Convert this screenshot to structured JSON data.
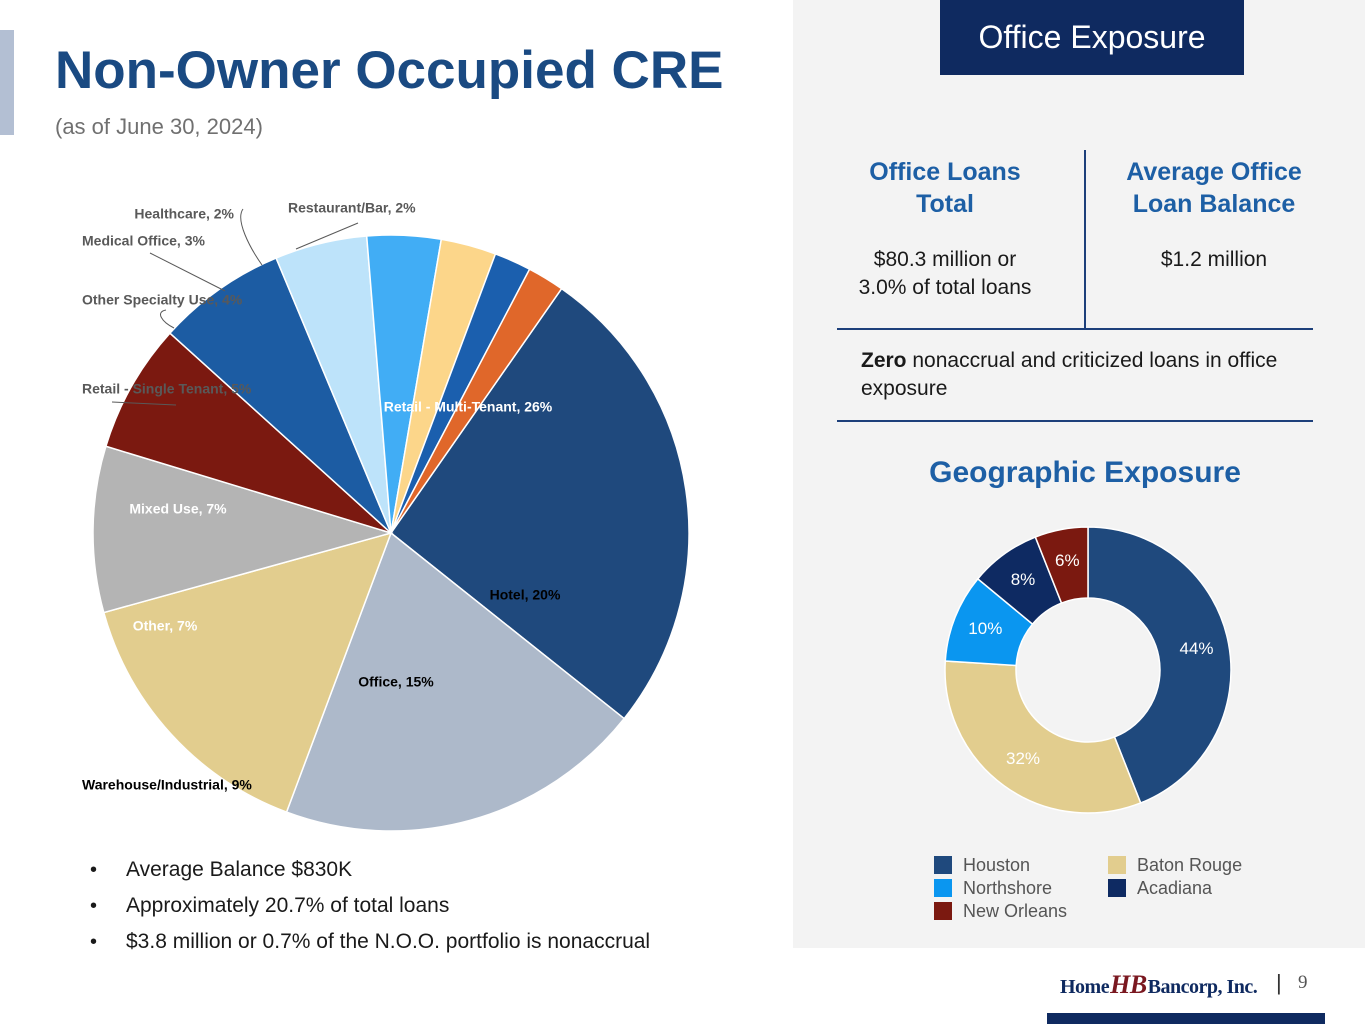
{
  "header": {
    "title": "Non-Owner Occupied CRE",
    "subtitle": "(as of June 30, 2024)"
  },
  "bullets": [
    "Average Balance $830K",
    "Approximately 20.7% of total loans",
    "$3.8 million or 0.7% of the N.O.O. portfolio is nonaccrual"
  ],
  "office_exposure": {
    "header": "Office Exposure",
    "loans_total_heading_line1": "Office Loans",
    "loans_total_heading_line2": "Total",
    "loans_total_value_line1": "$80.3 million or",
    "loans_total_value_line2": "3.0% of total loans",
    "avg_balance_heading_line1": "Average Office",
    "avg_balance_heading_line2": "Loan Balance",
    "avg_balance_value": "$1.2 million",
    "zero_bold": "Zero",
    "zero_text": " nonaccrual and criticized loans in office exposure"
  },
  "geo": {
    "title": "Geographic Exposure"
  },
  "footer": {
    "logo_left": "Home",
    "logo_mark": "HB",
    "logo_right": "Bancorp, Inc.",
    "separator": "|",
    "page_number": "9"
  },
  "chart_data": [
    {
      "type": "pie",
      "title": "",
      "slices": [
        {
          "label": "Retail - Multi-Tenant, 26%",
          "category": "Retail - Multi-Tenant",
          "value": 26,
          "color": "#1f497d",
          "label_color": "#ffffff"
        },
        {
          "label": "Hotel, 20%",
          "category": "Hotel",
          "value": 20,
          "color": "#adb9ca",
          "label_color": "#000000"
        },
        {
          "label": "Office, 15%",
          "category": "Office",
          "value": 15,
          "color": "#e2cd8e",
          "label_color": "#000000"
        },
        {
          "label": "Warehouse/Industrial, 9%",
          "category": "Warehouse/Industrial",
          "value": 9,
          "color": "#b4b4b4",
          "label_color": "#000000"
        },
        {
          "label": "Other, 7%",
          "category": "Other",
          "value": 7,
          "color": "#7b1910",
          "label_color": "#ffffff"
        },
        {
          "label": "Mixed Use, 7%",
          "category": "Mixed Use",
          "value": 7,
          "color": "#1c5ca3",
          "label_color": "#ffffff"
        },
        {
          "label": "Retail - Single Tenant, 5%",
          "category": "Retail - Single Tenant",
          "value": 5,
          "color": "#bde3fa",
          "label_color": "#595959"
        },
        {
          "label": "Other Specialty Use, 4%",
          "category": "Other Specialty Use",
          "value": 4,
          "color": "#41adf5",
          "label_color": "#595959"
        },
        {
          "label": "Medical Office, 3%",
          "category": "Medical Office",
          "value": 3,
          "color": "#fcd68a",
          "label_color": "#595959"
        },
        {
          "label": "Healthcare, 2%",
          "category": "Healthcare",
          "value": 2,
          "color": "#1b5fae",
          "label_color": "#595959"
        },
        {
          "label": "Restaurant/Bar, 2%",
          "category": "Restaurant/Bar",
          "value": 2,
          "color": "#e0672a",
          "label_color": "#595959"
        }
      ]
    },
    {
      "type": "pie",
      "subtype": "donut",
      "title": "Geographic Exposure",
      "legend_position": "bottom",
      "slices": [
        {
          "name": "Houston",
          "value": 44,
          "label": "44%",
          "color": "#1f497d"
        },
        {
          "name": "Baton Rouge",
          "value": 32,
          "label": "32%",
          "color": "#e2cd8e"
        },
        {
          "name": "Northshore",
          "value": 10,
          "label": "10%",
          "color": "#0a96f0"
        },
        {
          "name": "Acadiana",
          "value": 8,
          "label": "8%",
          "color": "#0e2a62"
        },
        {
          "name": "New Orleans",
          "value": 6,
          "label": "6%",
          "color": "#7b1910"
        }
      ]
    }
  ]
}
